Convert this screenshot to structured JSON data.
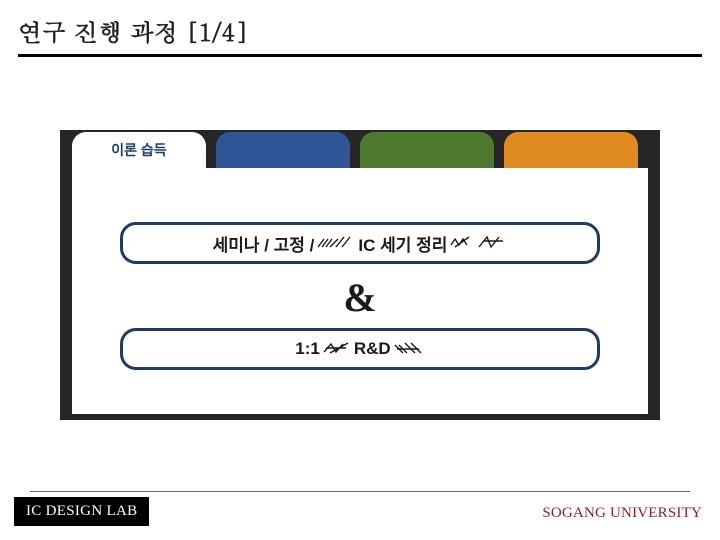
{
  "title": "연구 진행 과정 [1/4]",
  "tabs": {
    "active_label": "이론 습득",
    "colors": {
      "active_bg": "#ffffff",
      "active_fg": "#1f3f6b",
      "blue": "#2f5597",
      "green": "#4d7a2f",
      "orange": "#e08b1f"
    }
  },
  "row1": {
    "prefix": "세미나 / 고정 /",
    "suffix_plain": "IC 세기 정리",
    "garble_paths": [
      "M2 12 L8 4 M6 12 L12 4 M10 12 L16 4 M14 12 L22 4 M20 12 L28 2 M26 12 L34 2",
      "M2 10 L6 4 L10 10 L14 4 L18 10 M6 12 L20 2",
      "M2 12 L10 2 L14 12 L22 2 M6 6 L26 6"
    ]
  },
  "ampersand": "&",
  "row2": {
    "prefix": "1:1",
    "mid": "R&D",
    "garble_paths": [
      "M2 11 L9 3 L14 11 L21 3 M4 7 L24 7 M8 12 L26 2",
      "M2 4 L10 12 M6 4 L14 12 M12 2 L22 12 M18 2 L28 12 M4 8 L26 8"
    ]
  },
  "footer": {
    "left": "IC DESIGN LAB",
    "right_first": "S",
    "right_rest_1": "OGANG ",
    "right_first_2": "U",
    "right_rest_2": "NIVERSITY"
  },
  "style": {
    "content_bg": "#262626",
    "panel_bg": "#ffffff",
    "row_border": "#203b63",
    "footer_left_bg": "#000000",
    "footer_left_fg": "#ffffff",
    "footer_right_fg": "#8a1f1f"
  }
}
